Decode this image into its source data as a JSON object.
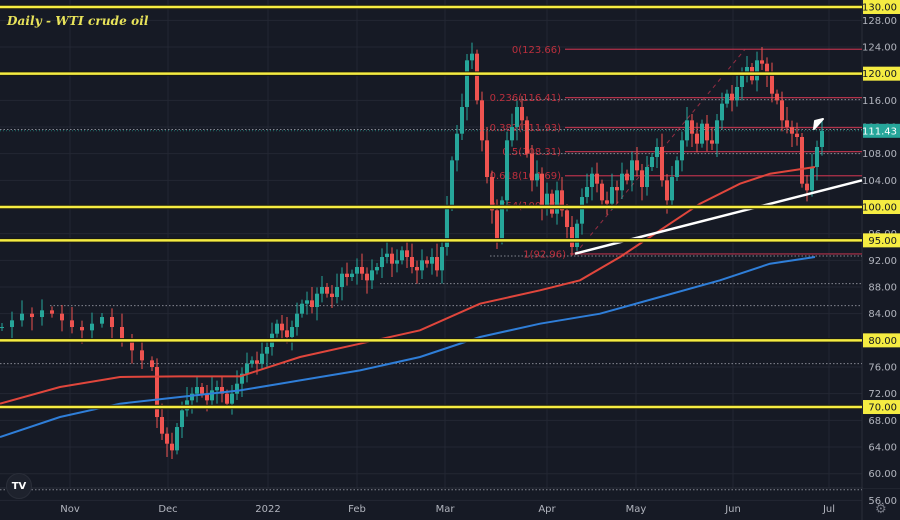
{
  "title": "Daily - WTI crude oil",
  "logo_text": "TV",
  "settings_icon": "⚙",
  "colors": {
    "background": "#161a25",
    "grid": "#232733",
    "up": "#26a69a",
    "down": "#ef5350",
    "yellow_level": "#f5ec42",
    "fib": "#b2324a",
    "ma_red": "#e0463c",
    "ma_blue": "#2f7ed8",
    "trendline": "#ffffff",
    "current_price_bg": "#26a69a"
  },
  "chart_data": {
    "type": "candlestick",
    "title": "Daily - WTI crude oil",
    "xlabel": "",
    "ylabel": "",
    "ylim": [
      56,
      130
    ],
    "grid": true,
    "x_tick_labels": [
      "Nov",
      "Dec",
      "2022",
      "Feb",
      "Mar",
      "Apr",
      "May",
      "Jun",
      "Jul"
    ],
    "y_tick_labels": [
      "128.00",
      "124.00",
      "116.00",
      "112.00",
      "108.00",
      "104.00",
      "96.00",
      "92.00",
      "88.00",
      "84.00",
      "76.00",
      "72.00",
      "68.00",
      "64.00",
      "60.00",
      "56.00"
    ],
    "horizontal_levels": [
      {
        "label": "130.00",
        "value": 130
      },
      {
        "label": "120.00",
        "value": 120
      },
      {
        "label": "100.00",
        "value": 100
      },
      {
        "label": "95.00",
        "value": 95
      },
      {
        "label": "80.00",
        "value": 80
      },
      {
        "label": "70.00",
        "value": 70
      }
    ],
    "current_price": {
      "label": "111.43",
      "value": 111.43
    },
    "fibonacci": [
      {
        "ratio": "0",
        "price": 123.66,
        "label": "0(123.66)"
      },
      {
        "ratio": "0.236",
        "price": 116.41,
        "label": "0.236(116.41)"
      },
      {
        "ratio": "0.382",
        "price": 111.93,
        "label": "0.382(111.93)"
      },
      {
        "ratio": "0.5",
        "price": 108.31,
        "label": "0.5(108.31)"
      },
      {
        "ratio": "0.618",
        "price": 104.69,
        "label": "0.618(104.69)"
      },
      {
        "ratio": "0.764",
        "price": 100.21,
        "label": "0.764(100.21)"
      },
      {
        "ratio": "1",
        "price": 92.96,
        "label": "1(92.96)"
      }
    ],
    "moving_averages": [
      {
        "name": "MA (red)",
        "color": "#e0463c",
        "points": [
          [
            0,
            70.5
          ],
          [
            60,
            73
          ],
          [
            120,
            74.5
          ],
          [
            180,
            74.6
          ],
          [
            240,
            74.6
          ],
          [
            300,
            77.5
          ],
          [
            360,
            79.5
          ],
          [
            420,
            81.5
          ],
          [
            480,
            85.5
          ],
          [
            540,
            87.5
          ],
          [
            580,
            89
          ],
          [
            620,
            92.5
          ],
          [
            660,
            96.5
          ],
          [
            700,
            100.5
          ],
          [
            740,
            103.5
          ],
          [
            770,
            105
          ],
          [
            815,
            106
          ]
        ]
      },
      {
        "name": "MA (blue)",
        "color": "#2f7ed8",
        "points": [
          [
            0,
            65.5
          ],
          [
            60,
            68.5
          ],
          [
            120,
            70.5
          ],
          [
            180,
            71.5
          ],
          [
            240,
            72.5
          ],
          [
            300,
            74
          ],
          [
            360,
            75.5
          ],
          [
            420,
            77.5
          ],
          [
            480,
            80.5
          ],
          [
            540,
            82.5
          ],
          [
            600,
            84
          ],
          [
            660,
            86.5
          ],
          [
            720,
            89
          ],
          [
            770,
            91.5
          ],
          [
            815,
            92.5
          ]
        ]
      }
    ],
    "trendline": {
      "from": [
        575,
        93
      ],
      "to": [
        862,
        104
      ]
    },
    "dotted_levels": [
      111.93,
      116.41,
      108.31,
      100.21,
      92.96,
      88.8,
      85.5,
      76.8,
      57.9
    ],
    "annotations": [
      {
        "type": "arrow",
        "direction": "down-left",
        "x": 822,
        "y": 120,
        "color": "#ffffff"
      }
    ]
  }
}
